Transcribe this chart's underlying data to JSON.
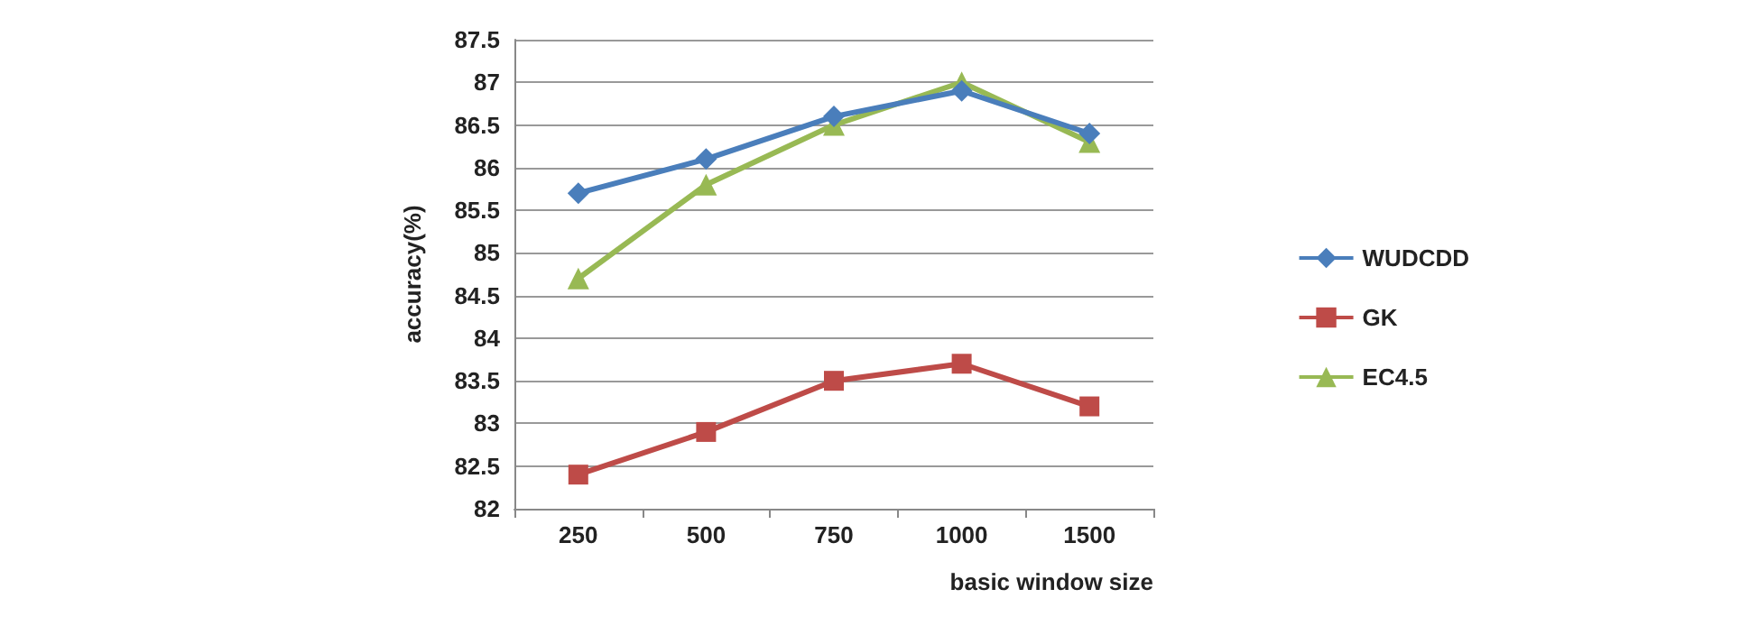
{
  "chart_data": {
    "type": "line",
    "xlabel": "basic window size",
    "ylabel": "accuracy(%)",
    "categories": [
      "250",
      "500",
      "750",
      "1000",
      "1500"
    ],
    "series": [
      {
        "name": "WUDCDD",
        "color": "#4a7ebb",
        "marker": "diamond",
        "values": [
          85.7,
          86.1,
          86.6,
          86.9,
          86.4
        ]
      },
      {
        "name": "GK",
        "color": "#be4b48",
        "marker": "square",
        "values": [
          82.4,
          82.9,
          83.5,
          83.7,
          83.2
        ]
      },
      {
        "name": "EC4.5",
        "color": "#98b954",
        "marker": "triangle",
        "values": [
          84.7,
          85.8,
          86.5,
          87,
          86.3
        ]
      }
    ],
    "ylim": [
      82,
      87.5
    ],
    "yticks": [
      82,
      82.5,
      83,
      83.5,
      84,
      84.5,
      85,
      85.5,
      86,
      86.5,
      87,
      87.5
    ],
    "grid": "y",
    "legend": "right",
    "line_style": "solid"
  }
}
